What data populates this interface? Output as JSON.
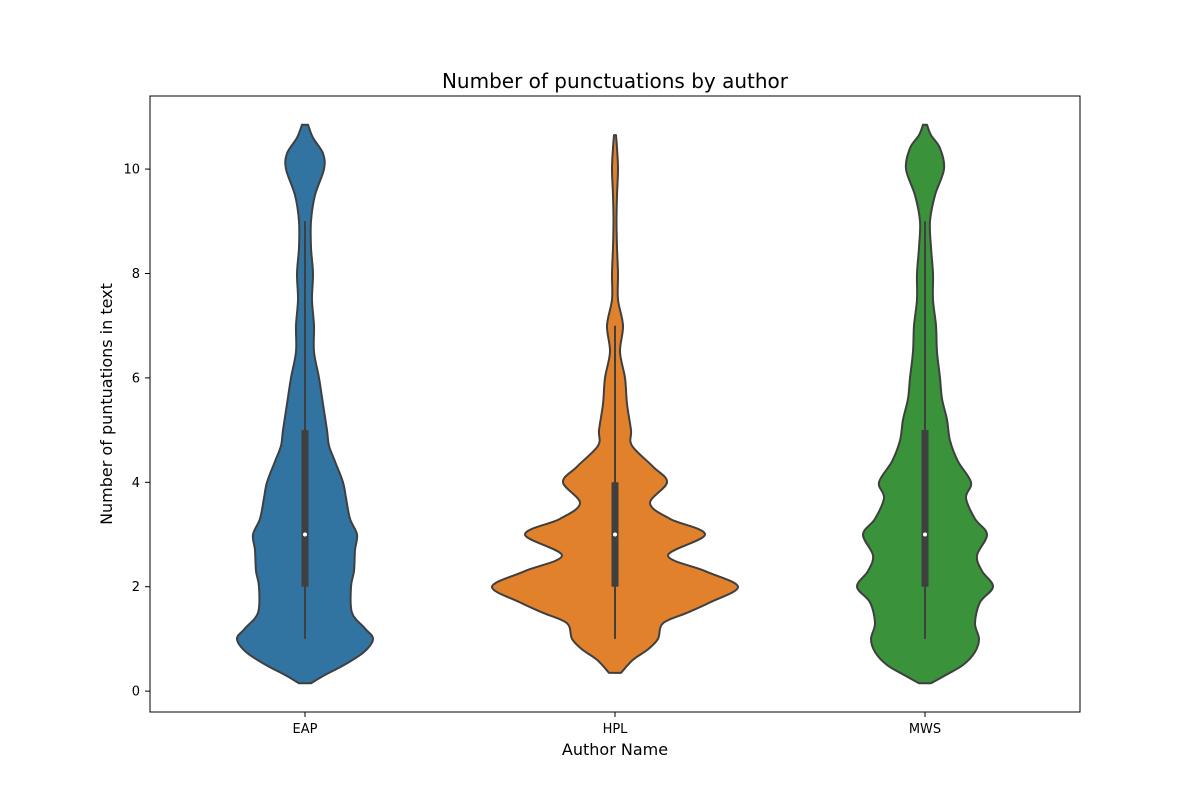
{
  "chart_data": {
    "type": "violin",
    "title": "Number of punctuations by author",
    "xlabel": "Author Name",
    "ylabel": "Number of puntuations in text",
    "ylim": [
      -0.4,
      11.4
    ],
    "yticks": [
      0,
      2,
      4,
      6,
      8,
      10
    ],
    "grid": false,
    "categories": [
      "EAP",
      "HPL",
      "MWS"
    ],
    "series": [
      {
        "category": "EAP",
        "color": "#3274a1",
        "median": 3,
        "q1": 2,
        "q3": 5,
        "whisker_low": 1,
        "whisker_high": 9,
        "density": [
          [
            0.15,
            0.06
          ],
          [
            0.3,
            0.19
          ],
          [
            0.5,
            0.39
          ],
          [
            0.75,
            0.59
          ],
          [
            1.0,
            0.68
          ],
          [
            1.2,
            0.6
          ],
          [
            1.5,
            0.47
          ],
          [
            2.0,
            0.46
          ],
          [
            2.3,
            0.49
          ],
          [
            2.7,
            0.5
          ],
          [
            3.0,
            0.52
          ],
          [
            3.3,
            0.45
          ],
          [
            3.7,
            0.41
          ],
          [
            4.0,
            0.38
          ],
          [
            4.4,
            0.3
          ],
          [
            4.7,
            0.24
          ],
          [
            5.0,
            0.22
          ],
          [
            5.5,
            0.18
          ],
          [
            6.0,
            0.14
          ],
          [
            6.5,
            0.09
          ],
          [
            7.0,
            0.09
          ],
          [
            7.5,
            0.07
          ],
          [
            8.0,
            0.08
          ],
          [
            8.5,
            0.06
          ],
          [
            9.0,
            0.06
          ],
          [
            9.5,
            0.1
          ],
          [
            10.0,
            0.19
          ],
          [
            10.3,
            0.18
          ],
          [
            10.6,
            0.08
          ],
          [
            10.85,
            0.03
          ]
        ]
      },
      {
        "category": "HPL",
        "color": "#e1812c",
        "median": 3,
        "q1": 2,
        "q3": 4,
        "whisker_low": 1,
        "whisker_high": 7,
        "density": [
          [
            0.35,
            0.06
          ],
          [
            0.6,
            0.18
          ],
          [
            0.8,
            0.33
          ],
          [
            1.0,
            0.43
          ],
          [
            1.3,
            0.48
          ],
          [
            1.5,
            0.72
          ],
          [
            1.7,
            0.95
          ],
          [
            2.0,
            1.23
          ],
          [
            2.3,
            0.9
          ],
          [
            2.6,
            0.53
          ],
          [
            3.0,
            0.9
          ],
          [
            3.3,
            0.55
          ],
          [
            3.6,
            0.35
          ],
          [
            4.0,
            0.52
          ],
          [
            4.3,
            0.38
          ],
          [
            4.7,
            0.17
          ],
          [
            5.0,
            0.16
          ],
          [
            5.5,
            0.12
          ],
          [
            6.0,
            0.1
          ],
          [
            6.5,
            0.05
          ],
          [
            7.0,
            0.08
          ],
          [
            7.5,
            0.03
          ],
          [
            8.0,
            0.03
          ],
          [
            8.5,
            0.02
          ],
          [
            9.0,
            0.015
          ],
          [
            9.5,
            0.02
          ],
          [
            10.0,
            0.03
          ],
          [
            10.4,
            0.02
          ],
          [
            10.65,
            0.01
          ]
        ]
      },
      {
        "category": "MWS",
        "color": "#3a923a",
        "median": 3,
        "q1": 2,
        "q3": 5,
        "whisker_low": 1,
        "whisker_high": 9,
        "density": [
          [
            0.15,
            0.06
          ],
          [
            0.3,
            0.2
          ],
          [
            0.5,
            0.38
          ],
          [
            0.75,
            0.5
          ],
          [
            1.0,
            0.54
          ],
          [
            1.3,
            0.5
          ],
          [
            1.7,
            0.55
          ],
          [
            2.0,
            0.68
          ],
          [
            2.3,
            0.57
          ],
          [
            2.6,
            0.52
          ],
          [
            3.0,
            0.62
          ],
          [
            3.3,
            0.5
          ],
          [
            3.7,
            0.41
          ],
          [
            4.0,
            0.46
          ],
          [
            4.4,
            0.33
          ],
          [
            4.8,
            0.25
          ],
          [
            5.2,
            0.22
          ],
          [
            5.6,
            0.17
          ],
          [
            6.0,
            0.15
          ],
          [
            6.5,
            0.12
          ],
          [
            7.0,
            0.11
          ],
          [
            7.5,
            0.08
          ],
          [
            8.0,
            0.08
          ],
          [
            8.5,
            0.06
          ],
          [
            9.0,
            0.05
          ],
          [
            9.5,
            0.1
          ],
          [
            10.0,
            0.19
          ],
          [
            10.4,
            0.15
          ],
          [
            10.65,
            0.06
          ],
          [
            10.85,
            0.02
          ]
        ]
      }
    ]
  }
}
